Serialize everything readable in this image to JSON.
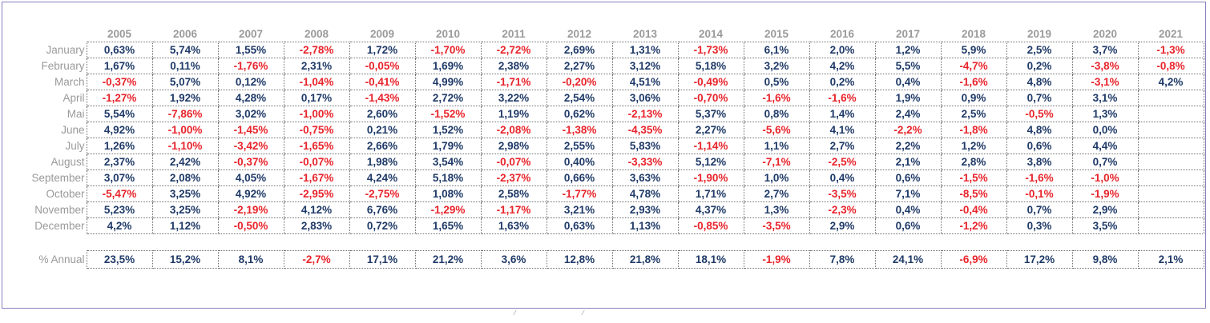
{
  "colors": {
    "positive": "#1f3a68",
    "negative": "#e8242b",
    "label": "#9a9a9a",
    "frame": "#8b7fbf"
  },
  "years": [
    "2005",
    "2006",
    "2007",
    "2008",
    "2009",
    "2010",
    "2011",
    "2012",
    "2013",
    "2014",
    "2015",
    "2016",
    "2017",
    "2018",
    "2019",
    "2020",
    "2021"
  ],
  "rows": [
    {
      "label": "January",
      "values": [
        "0,63%",
        "5,74%",
        "1,55%",
        "-2,78%",
        "1,72%",
        "-1,70%",
        "-2,72%",
        "2,69%",
        "1,31%",
        "-1,73%",
        "6,1%",
        "2,0%",
        "1,2%",
        "5,9%",
        "2,5%",
        "3,7%",
        "-1,3%"
      ]
    },
    {
      "label": "February",
      "values": [
        "1,67%",
        "0,11%",
        "-1,76%",
        "2,31%",
        "-0,05%",
        "1,69%",
        "2,38%",
        "2,27%",
        "3,12%",
        "5,18%",
        "3,2%",
        "4,2%",
        "5,5%",
        "-4,7%",
        "0,2%",
        "-3,8%",
        "-0,8%"
      ]
    },
    {
      "label": "March",
      "values": [
        "-0,37%",
        "5,07%",
        "0,12%",
        "-1,04%",
        "-0,41%",
        "4,99%",
        "-1,71%",
        "-0,20%",
        "4,51%",
        "-0,49%",
        "0,5%",
        "0,2%",
        "0,4%",
        "-1,6%",
        "4,8%",
        "-3,1%",
        "4,2%"
      ]
    },
    {
      "label": "April",
      "values": [
        "-1,27%",
        "1,92%",
        "4,28%",
        "0,17%",
        "-1,43%",
        "2,72%",
        "3,22%",
        "2,54%",
        "3,06%",
        "-0,70%",
        "-1,6%",
        "-1,6%",
        "1,9%",
        "0,9%",
        "0,7%",
        "3,1%",
        ""
      ]
    },
    {
      "label": "Mai",
      "values": [
        "5,54%",
        "-7,86%",
        "3,02%",
        "-1,00%",
        "2,60%",
        "-1,52%",
        "1,19%",
        "0,62%",
        "-2,13%",
        "5,37%",
        "0,8%",
        "1,4%",
        "2,4%",
        "2,5%",
        "-0,5%",
        "1,3%",
        ""
      ]
    },
    {
      "label": "June",
      "values": [
        "4,92%",
        "-1,00%",
        "-1,45%",
        "-0,75%",
        "0,21%",
        "1,52%",
        "-2,08%",
        "-1,38%",
        "-4,35%",
        "2,27%",
        "-5,6%",
        "4,1%",
        "-2,2%",
        "-1,8%",
        "4,8%",
        "0,0%",
        ""
      ]
    },
    {
      "label": "July",
      "values": [
        "1,26%",
        "-1,10%",
        "-3,42%",
        "-1,65%",
        "2,66%",
        "1,79%",
        "2,98%",
        "2,55%",
        "5,83%",
        "-1,14%",
        "1,1%",
        "2,7%",
        "2,2%",
        "1,2%",
        "0,6%",
        "4,4%",
        ""
      ]
    },
    {
      "label": "August",
      "values": [
        "2,37%",
        "2,42%",
        "-0,37%",
        "-0,07%",
        "1,98%",
        "3,54%",
        "-0,07%",
        "0,40%",
        "-3,33%",
        "5,12%",
        "-7,1%",
        "-2,5%",
        "2,1%",
        "2,8%",
        "3,8%",
        "0,7%",
        ""
      ]
    },
    {
      "label": "September",
      "values": [
        "3,07%",
        "2,08%",
        "4,05%",
        "-1,67%",
        "4,24%",
        "5,18%",
        "-2,37%",
        "0,66%",
        "3,63%",
        "-1,90%",
        "1,0%",
        "0,4%",
        "0,6%",
        "-1,5%",
        "-1,6%",
        "-1,0%",
        ""
      ]
    },
    {
      "label": "October",
      "values": [
        "-5,47%",
        "3,25%",
        "4,92%",
        "-2,95%",
        "-2,75%",
        "1,08%",
        "2,58%",
        "-1,77%",
        "4,78%",
        "1,71%",
        "2,7%",
        "-3,5%",
        "7,1%",
        "-8,5%",
        "-0,1%",
        "-1,9%",
        ""
      ]
    },
    {
      "label": "November",
      "values": [
        "5,23%",
        "3,25%",
        "-2,19%",
        "4,12%",
        "6,76%",
        "-1,29%",
        "-1,17%",
        "3,21%",
        "2,93%",
        "4,37%",
        "1,3%",
        "-2,3%",
        "0,4%",
        "-0,4%",
        "0,7%",
        "2,9%",
        ""
      ]
    },
    {
      "label": "December",
      "values": [
        "4,2%",
        "1,12%",
        "-0,50%",
        "2,83%",
        "0,72%",
        "1,65%",
        "1,63%",
        "0,63%",
        "1,13%",
        "-0,85%",
        "-3,5%",
        "2,9%",
        "0,6%",
        "-1,2%",
        "0,3%",
        "3,5%",
        ""
      ]
    }
  ],
  "annual": {
    "label": "% Annual",
    "values": [
      "23,5%",
      "15,2%",
      "8,1%",
      "-2,7%",
      "17,1%",
      "21,2%",
      "3,6%",
      "12,8%",
      "21,8%",
      "18,1%",
      "-1,9%",
      "7,8%",
      "24,1%",
      "-6,9%",
      "17,2%",
      "9,8%",
      "2,1%"
    ]
  }
}
